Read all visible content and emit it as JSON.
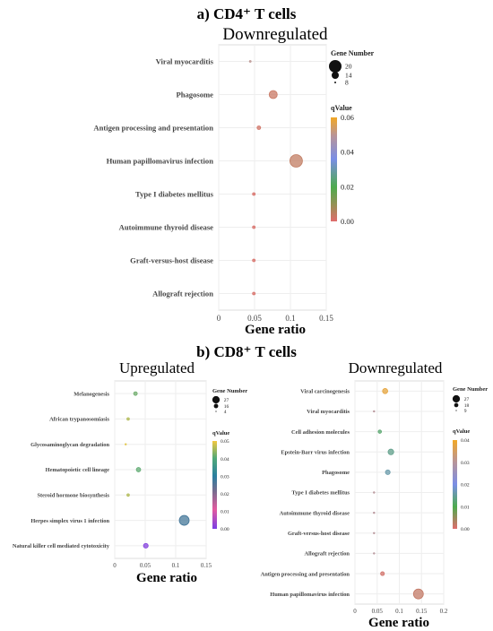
{
  "figure": {
    "section_a": "a) CD4⁺ T cells",
    "section_b": "b) CD8⁺ T cells"
  },
  "chart_data": [
    {
      "id": "cd4-down",
      "type": "scatter",
      "title": "Downregulated",
      "xlabel": "Gene ratio",
      "xlim": [
        0,
        0.15
      ],
      "xticks": [
        "0",
        "0.05",
        "0.1",
        "0.15"
      ],
      "xtick_values": [
        0,
        0.05,
        0.1,
        0.15
      ],
      "grid": true,
      "categories": [
        "Viral myocarditis",
        "Phagosome",
        "Antigen processing and presentation",
        "Human papillomavirus infection",
        "Type I diabetes mellitus",
        "Autoimmune thyroid disease",
        "Graft-versus-host disease",
        "Allograft rejection"
      ],
      "points": [
        {
          "term": "Viral myocarditis",
          "gene_ratio": 0.044,
          "gene_number": 6,
          "qvalue": 0.05
        },
        {
          "term": "Phagosome",
          "gene_ratio": 0.076,
          "gene_number": 15,
          "qvalue": 0.003
        },
        {
          "term": "Antigen processing and presentation",
          "gene_ratio": 0.056,
          "gene_number": 10,
          "qvalue": 0.002
        },
        {
          "term": "Human papillomavirus infection",
          "gene_ratio": 0.108,
          "gene_number": 20,
          "qvalue": 0.004
        },
        {
          "term": "Type I diabetes mellitus",
          "gene_ratio": 0.049,
          "gene_number": 9,
          "qvalue": 0.001
        },
        {
          "term": "Autoimmune thyroid disease",
          "gene_ratio": 0.049,
          "gene_number": 9,
          "qvalue": 0.001
        },
        {
          "term": "Graft-versus-host disease",
          "gene_ratio": 0.049,
          "gene_number": 9,
          "qvalue": 0.001
        },
        {
          "term": "Allograft rejection",
          "gene_ratio": 0.049,
          "gene_number": 9,
          "qvalue": 0.001
        }
      ],
      "size_legend": {
        "title": "Gene Number",
        "labels": [
          "20",
          "14",
          "8"
        ],
        "values": [
          20,
          14,
          8
        ]
      },
      "color_legend": {
        "title": "qValue",
        "ticks": [
          "0.06",
          "0.04",
          "0.02",
          "0.00"
        ],
        "tick_values": [
          0.06,
          0.04,
          0.02,
          0
        ],
        "range": [
          0,
          0.06
        ]
      }
    },
    {
      "id": "cd8-up",
      "type": "scatter",
      "title": "Upregulated",
      "xlabel": "Gene ratio",
      "xlim": [
        0,
        0.15
      ],
      "xticks": [
        "0",
        "0.05",
        "0.1",
        "0.15"
      ],
      "xtick_values": [
        0,
        0.05,
        0.1,
        0.15
      ],
      "grid": true,
      "categories": [
        "Melanogenesis",
        "African trypanosomiasis",
        "Glycosaminoglycan degradation",
        "Hematopoietic cell lineage",
        "Steroid hormone biosynthesis",
        "Herpes simplex virus 1 infection",
        "Natural killer cell mediated cytotoxicity"
      ],
      "points": [
        {
          "term": "Melanogenesis",
          "gene_ratio": 0.034,
          "gene_number": 10,
          "qvalue": 0.042
        },
        {
          "term": "African trypanosomiasis",
          "gene_ratio": 0.022,
          "gene_number": 7,
          "qvalue": 0.046
        },
        {
          "term": "Glycosaminoglycan degradation",
          "gene_ratio": 0.018,
          "gene_number": 4,
          "qvalue": 0.049
        },
        {
          "term": "Hematopoietic cell lineage",
          "gene_ratio": 0.039,
          "gene_number": 12,
          "qvalue": 0.041
        },
        {
          "term": "Steroid hormone biosynthesis",
          "gene_ratio": 0.022,
          "gene_number": 7,
          "qvalue": 0.046
        },
        {
          "term": "Herpes simplex virus 1 infection",
          "gene_ratio": 0.114,
          "gene_number": 27,
          "qvalue": 0.027
        },
        {
          "term": "Natural killer cell mediated cytotoxicity",
          "gene_ratio": 0.051,
          "gene_number": 13,
          "qvalue": 0.001
        }
      ],
      "size_legend": {
        "title": "Gene Number",
        "labels": [
          "27",
          "16",
          "4"
        ],
        "values": [
          27,
          16,
          4
        ]
      },
      "color_legend": {
        "title": "qValue",
        "ticks": [
          "0.05",
          "0.04",
          "0.03",
          "0.02",
          "0.01",
          "0.00"
        ],
        "tick_values": [
          0.05,
          0.04,
          0.03,
          0.02,
          0.01,
          0
        ],
        "range": [
          0,
          0.05
        ]
      }
    },
    {
      "id": "cd8-down",
      "type": "scatter",
      "title": "Downregulated",
      "xlabel": "Gene ratio",
      "xlim": [
        0,
        0.2
      ],
      "xticks": [
        "0",
        "0.05",
        "0.1",
        "0.15",
        "0.2"
      ],
      "xtick_values": [
        0,
        0.05,
        0.1,
        0.15,
        0.2
      ],
      "grid": true,
      "categories": [
        "Viral carcinogenesis",
        "Viral myocarditis",
        "Cell adhesion molecules",
        "Epstein-Barr virus infection",
        "Phagosome",
        "Type I diabetes mellitus",
        "Autoimmune thyroid disease",
        "Graft-versus-host disease",
        "Allograft rejection",
        "Antigen processing and presentation",
        "Human papillomavirus infection"
      ],
      "points": [
        {
          "term": "Viral carcinogenesis",
          "gene_ratio": 0.068,
          "gene_number": 17,
          "qvalue": 0.038
        },
        {
          "term": "Viral myocarditis",
          "gene_ratio": 0.043,
          "gene_number": 9,
          "qvalue": 0.03
        },
        {
          "term": "Cell adhesion molecules",
          "gene_ratio": 0.056,
          "gene_number": 13,
          "qvalue": 0.012
        },
        {
          "term": "Epstein-Barr virus infection",
          "gene_ratio": 0.081,
          "gene_number": 18,
          "qvalue": 0.014
        },
        {
          "term": "Phagosome",
          "gene_ratio": 0.074,
          "gene_number": 16,
          "qvalue": 0.016
        },
        {
          "term": "Type I diabetes mellitus",
          "gene_ratio": 0.043,
          "gene_number": 9,
          "qvalue": 0.03
        },
        {
          "term": "Autoimmune thyroid disease",
          "gene_ratio": 0.043,
          "gene_number": 9,
          "qvalue": 0.03
        },
        {
          "term": "Graft-versus-host disease",
          "gene_ratio": 0.043,
          "gene_number": 9,
          "qvalue": 0.03
        },
        {
          "term": "Allograft rejection",
          "gene_ratio": 0.043,
          "gene_number": 9,
          "qvalue": 0.03
        },
        {
          "term": "Antigen processing and presentation",
          "gene_ratio": 0.062,
          "gene_number": 14,
          "qvalue": 0.001
        },
        {
          "term": "Human papillomavirus infection",
          "gene_ratio": 0.143,
          "gene_number": 27,
          "qvalue": 0.002
        }
      ],
      "size_legend": {
        "title": "Gene Number",
        "labels": [
          "27",
          "18",
          "9"
        ],
        "values": [
          27,
          18,
          9
        ]
      },
      "color_legend": {
        "title": "qValue",
        "ticks": [
          "0.04",
          "0.03",
          "0.02",
          "0.01",
          "0.00"
        ],
        "tick_values": [
          0.04,
          0.03,
          0.02,
          0.01,
          0
        ],
        "range": [
          0,
          0.04
        ]
      }
    }
  ]
}
